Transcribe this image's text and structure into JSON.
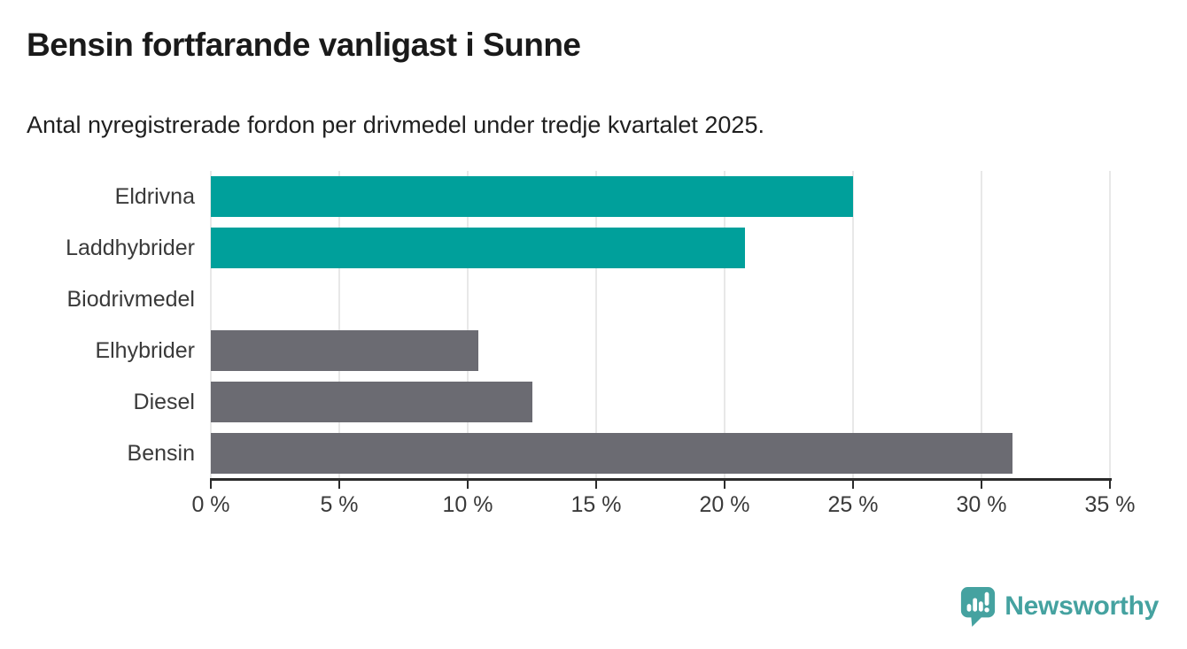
{
  "header": {
    "title": "Bensin fortfarande vanligast i Sunne",
    "subtitle": "Antal nyregistrerade fordon per drivmedel under tredje kvartalet 2025."
  },
  "chart_data": {
    "type": "bar",
    "orientation": "horizontal",
    "title": "Bensin fortfarande vanligast i Sunne",
    "subtitle": "Antal nyregistrerade fordon per drivmedel under tredje kvartalet 2025.",
    "categories": [
      "Eldrivna",
      "Laddhybrider",
      "Biodrivmedel",
      "Elhybrider",
      "Diesel",
      "Bensin"
    ],
    "values": [
      25.0,
      20.8,
      0.0,
      10.4,
      12.5,
      31.2
    ],
    "unit": "%",
    "bar_colors": [
      "#00a09b",
      "#00a09b",
      "#6b6b72",
      "#6b6b72",
      "#6b6b72",
      "#6b6b72"
    ],
    "xlim": [
      0,
      35
    ],
    "xticks": [
      0,
      5,
      10,
      15,
      20,
      25,
      30,
      35
    ],
    "xtick_labels": [
      "0 %",
      "5 %",
      "10 %",
      "15 %",
      "20 %",
      "25 %",
      "30 %",
      "35 %"
    ],
    "grid": "vertical gridlines on",
    "legend": "none"
  },
  "colors": {
    "highlight": "#00a09b",
    "neutral": "#6b6b72",
    "gridline": "#e8e8e8",
    "axis": "#2b2b2b",
    "tick_text": "#3a3a3a",
    "title_text": "#1a1a1a",
    "background": "#ffffff",
    "brand": "#45a2a0"
  },
  "branding": {
    "name": "Newsworthy",
    "icon": "newsworthy-chart-bubble-icon"
  }
}
